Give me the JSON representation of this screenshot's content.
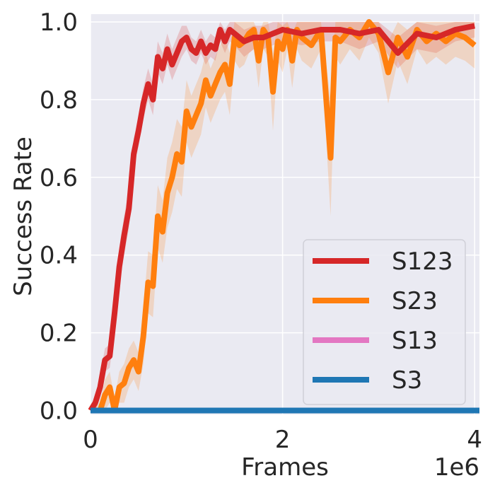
{
  "chart_data": {
    "type": "line",
    "title": "",
    "xlabel": "Frames",
    "ylabel": "Success Rate",
    "x_multiplier_label": "1e6",
    "xlim": [
      0,
      4.05
    ],
    "ylim": [
      -0.01,
      1.02
    ],
    "x_ticks": [
      0,
      2,
      4
    ],
    "x_tick_labels": [
      "0",
      "2",
      "4"
    ],
    "y_ticks": [
      0.0,
      0.2,
      0.4,
      0.6,
      0.8,
      1.0
    ],
    "y_tick_labels": [
      "0.0",
      "0.2",
      "0.4",
      "0.6",
      "0.8",
      "1.0"
    ],
    "grid": true,
    "legend_position": "lower-right",
    "series": [
      {
        "name": "S123",
        "color": "#d62728",
        "x": [
          0,
          0.05,
          0.1,
          0.15,
          0.2,
          0.25,
          0.3,
          0.35,
          0.4,
          0.45,
          0.5,
          0.55,
          0.6,
          0.65,
          0.7,
          0.75,
          0.8,
          0.85,
          0.9,
          0.95,
          1.0,
          1.05,
          1.1,
          1.15,
          1.2,
          1.25,
          1.3,
          1.35,
          1.4,
          1.45,
          1.5,
          1.6,
          1.7,
          1.8,
          1.9,
          2.0,
          2.2,
          2.4,
          2.6,
          2.8,
          3.0,
          3.2,
          3.4,
          3.6,
          3.8,
          4.0
        ],
        "y": [
          0.0,
          0.02,
          0.06,
          0.13,
          0.14,
          0.25,
          0.37,
          0.45,
          0.52,
          0.66,
          0.72,
          0.79,
          0.84,
          0.8,
          0.91,
          0.88,
          0.93,
          0.89,
          0.92,
          0.95,
          0.96,
          0.93,
          0.92,
          0.95,
          0.92,
          0.94,
          0.93,
          0.98,
          0.95,
          0.98,
          0.97,
          0.95,
          0.96,
          0.96,
          0.97,
          0.98,
          0.97,
          0.98,
          0.98,
          0.97,
          0.98,
          0.92,
          0.97,
          0.96,
          0.98,
          0.99
        ],
        "lower": [
          0.0,
          0.0,
          0.03,
          0.1,
          0.11,
          0.2,
          0.32,
          0.4,
          0.47,
          0.62,
          0.68,
          0.75,
          0.8,
          0.76,
          0.87,
          0.84,
          0.89,
          0.85,
          0.88,
          0.91,
          0.93,
          0.9,
          0.89,
          0.92,
          0.89,
          0.91,
          0.9,
          0.95,
          0.92,
          0.95,
          0.94,
          0.91,
          0.93,
          0.93,
          0.94,
          0.95,
          0.94,
          0.95,
          0.95,
          0.93,
          0.95,
          0.88,
          0.93,
          0.92,
          0.95,
          0.96
        ],
        "upper": [
          0.0,
          0.04,
          0.09,
          0.16,
          0.17,
          0.3,
          0.42,
          0.5,
          0.57,
          0.7,
          0.76,
          0.83,
          0.88,
          0.84,
          0.95,
          0.92,
          0.97,
          0.93,
          0.96,
          0.99,
          0.99,
          0.96,
          0.95,
          0.98,
          0.95,
          0.97,
          0.96,
          1.0,
          0.98,
          1.0,
          1.0,
          0.98,
          0.99,
          0.99,
          1.0,
          1.0,
          1.0,
          1.0,
          1.0,
          1.0,
          1.0,
          0.96,
          1.0,
          0.99,
          1.0,
          1.0
        ]
      },
      {
        "name": "S23",
        "color": "#ff7f0e",
        "x": [
          0,
          0.1,
          0.15,
          0.2,
          0.25,
          0.3,
          0.35,
          0.4,
          0.45,
          0.5,
          0.55,
          0.6,
          0.65,
          0.7,
          0.75,
          0.8,
          0.85,
          0.9,
          0.95,
          1.0,
          1.05,
          1.1,
          1.15,
          1.2,
          1.25,
          1.3,
          1.35,
          1.4,
          1.45,
          1.5,
          1.55,
          1.6,
          1.65,
          1.7,
          1.75,
          1.8,
          1.85,
          1.9,
          1.95,
          2.0,
          2.05,
          2.1,
          2.15,
          2.2,
          2.3,
          2.4,
          2.5,
          2.55,
          2.6,
          2.7,
          2.8,
          2.9,
          3.0,
          3.1,
          3.2,
          3.3,
          3.4,
          3.5,
          3.6,
          3.7,
          3.8,
          3.9,
          4.0
        ],
        "y": [
          0.0,
          0.0,
          0.04,
          0.06,
          0.0,
          0.06,
          0.07,
          0.11,
          0.13,
          0.1,
          0.19,
          0.33,
          0.32,
          0.5,
          0.46,
          0.56,
          0.6,
          0.66,
          0.64,
          0.77,
          0.73,
          0.76,
          0.79,
          0.85,
          0.81,
          0.84,
          0.87,
          0.89,
          0.84,
          0.96,
          0.94,
          0.95,
          0.97,
          0.98,
          0.9,
          0.98,
          0.96,
          0.82,
          0.95,
          0.93,
          0.98,
          0.9,
          0.98,
          0.96,
          0.94,
          0.98,
          0.65,
          0.96,
          0.95,
          0.98,
          0.96,
          1.0,
          0.97,
          0.87,
          0.96,
          0.91,
          0.98,
          0.95,
          0.97,
          0.95,
          0.97,
          0.96,
          0.94
        ],
        "lower": [
          0.0,
          0.0,
          0.0,
          0.02,
          0.0,
          0.02,
          0.02,
          0.06,
          0.08,
          0.05,
          0.12,
          0.25,
          0.24,
          0.42,
          0.38,
          0.47,
          0.51,
          0.57,
          0.55,
          0.69,
          0.65,
          0.68,
          0.71,
          0.78,
          0.74,
          0.77,
          0.8,
          0.82,
          0.76,
          0.9,
          0.88,
          0.89,
          0.92,
          0.93,
          0.83,
          0.93,
          0.91,
          0.72,
          0.9,
          0.87,
          0.93,
          0.83,
          0.93,
          0.9,
          0.88,
          0.93,
          0.5,
          0.91,
          0.89,
          0.93,
          0.9,
          0.96,
          0.92,
          0.79,
          0.9,
          0.84,
          0.93,
          0.89,
          0.91,
          0.89,
          0.91,
          0.9,
          0.88
        ],
        "upper": [
          0.0,
          0.02,
          0.08,
          0.1,
          0.03,
          0.1,
          0.12,
          0.16,
          0.18,
          0.15,
          0.26,
          0.41,
          0.4,
          0.58,
          0.54,
          0.65,
          0.69,
          0.75,
          0.73,
          0.85,
          0.81,
          0.84,
          0.87,
          0.92,
          0.88,
          0.91,
          0.94,
          0.96,
          0.92,
          1.0,
          1.0,
          1.0,
          1.0,
          1.0,
          0.97,
          1.0,
          1.0,
          0.92,
          1.0,
          0.99,
          1.0,
          0.97,
          1.0,
          1.0,
          1.0,
          1.0,
          0.8,
          1.0,
          1.0,
          1.0,
          1.0,
          1.0,
          1.0,
          0.95,
          1.0,
          0.98,
          1.0,
          1.0,
          1.0,
          1.0,
          1.0,
          1.0,
          1.0
        ]
      },
      {
        "name": "S13",
        "color": "#e377c2",
        "x": [
          0,
          4.05
        ],
        "y": [
          0.0,
          0.0
        ]
      },
      {
        "name": "S3",
        "color": "#1f77b4",
        "x": [
          0,
          4.05
        ],
        "y": [
          0.0,
          0.0
        ]
      }
    ],
    "legend": [
      {
        "label": "S123",
        "color": "#d62728"
      },
      {
        "label": "S23",
        "color": "#ff7f0e"
      },
      {
        "label": "S13",
        "color": "#e377c2"
      },
      {
        "label": "S3",
        "color": "#1f77b4"
      }
    ]
  }
}
